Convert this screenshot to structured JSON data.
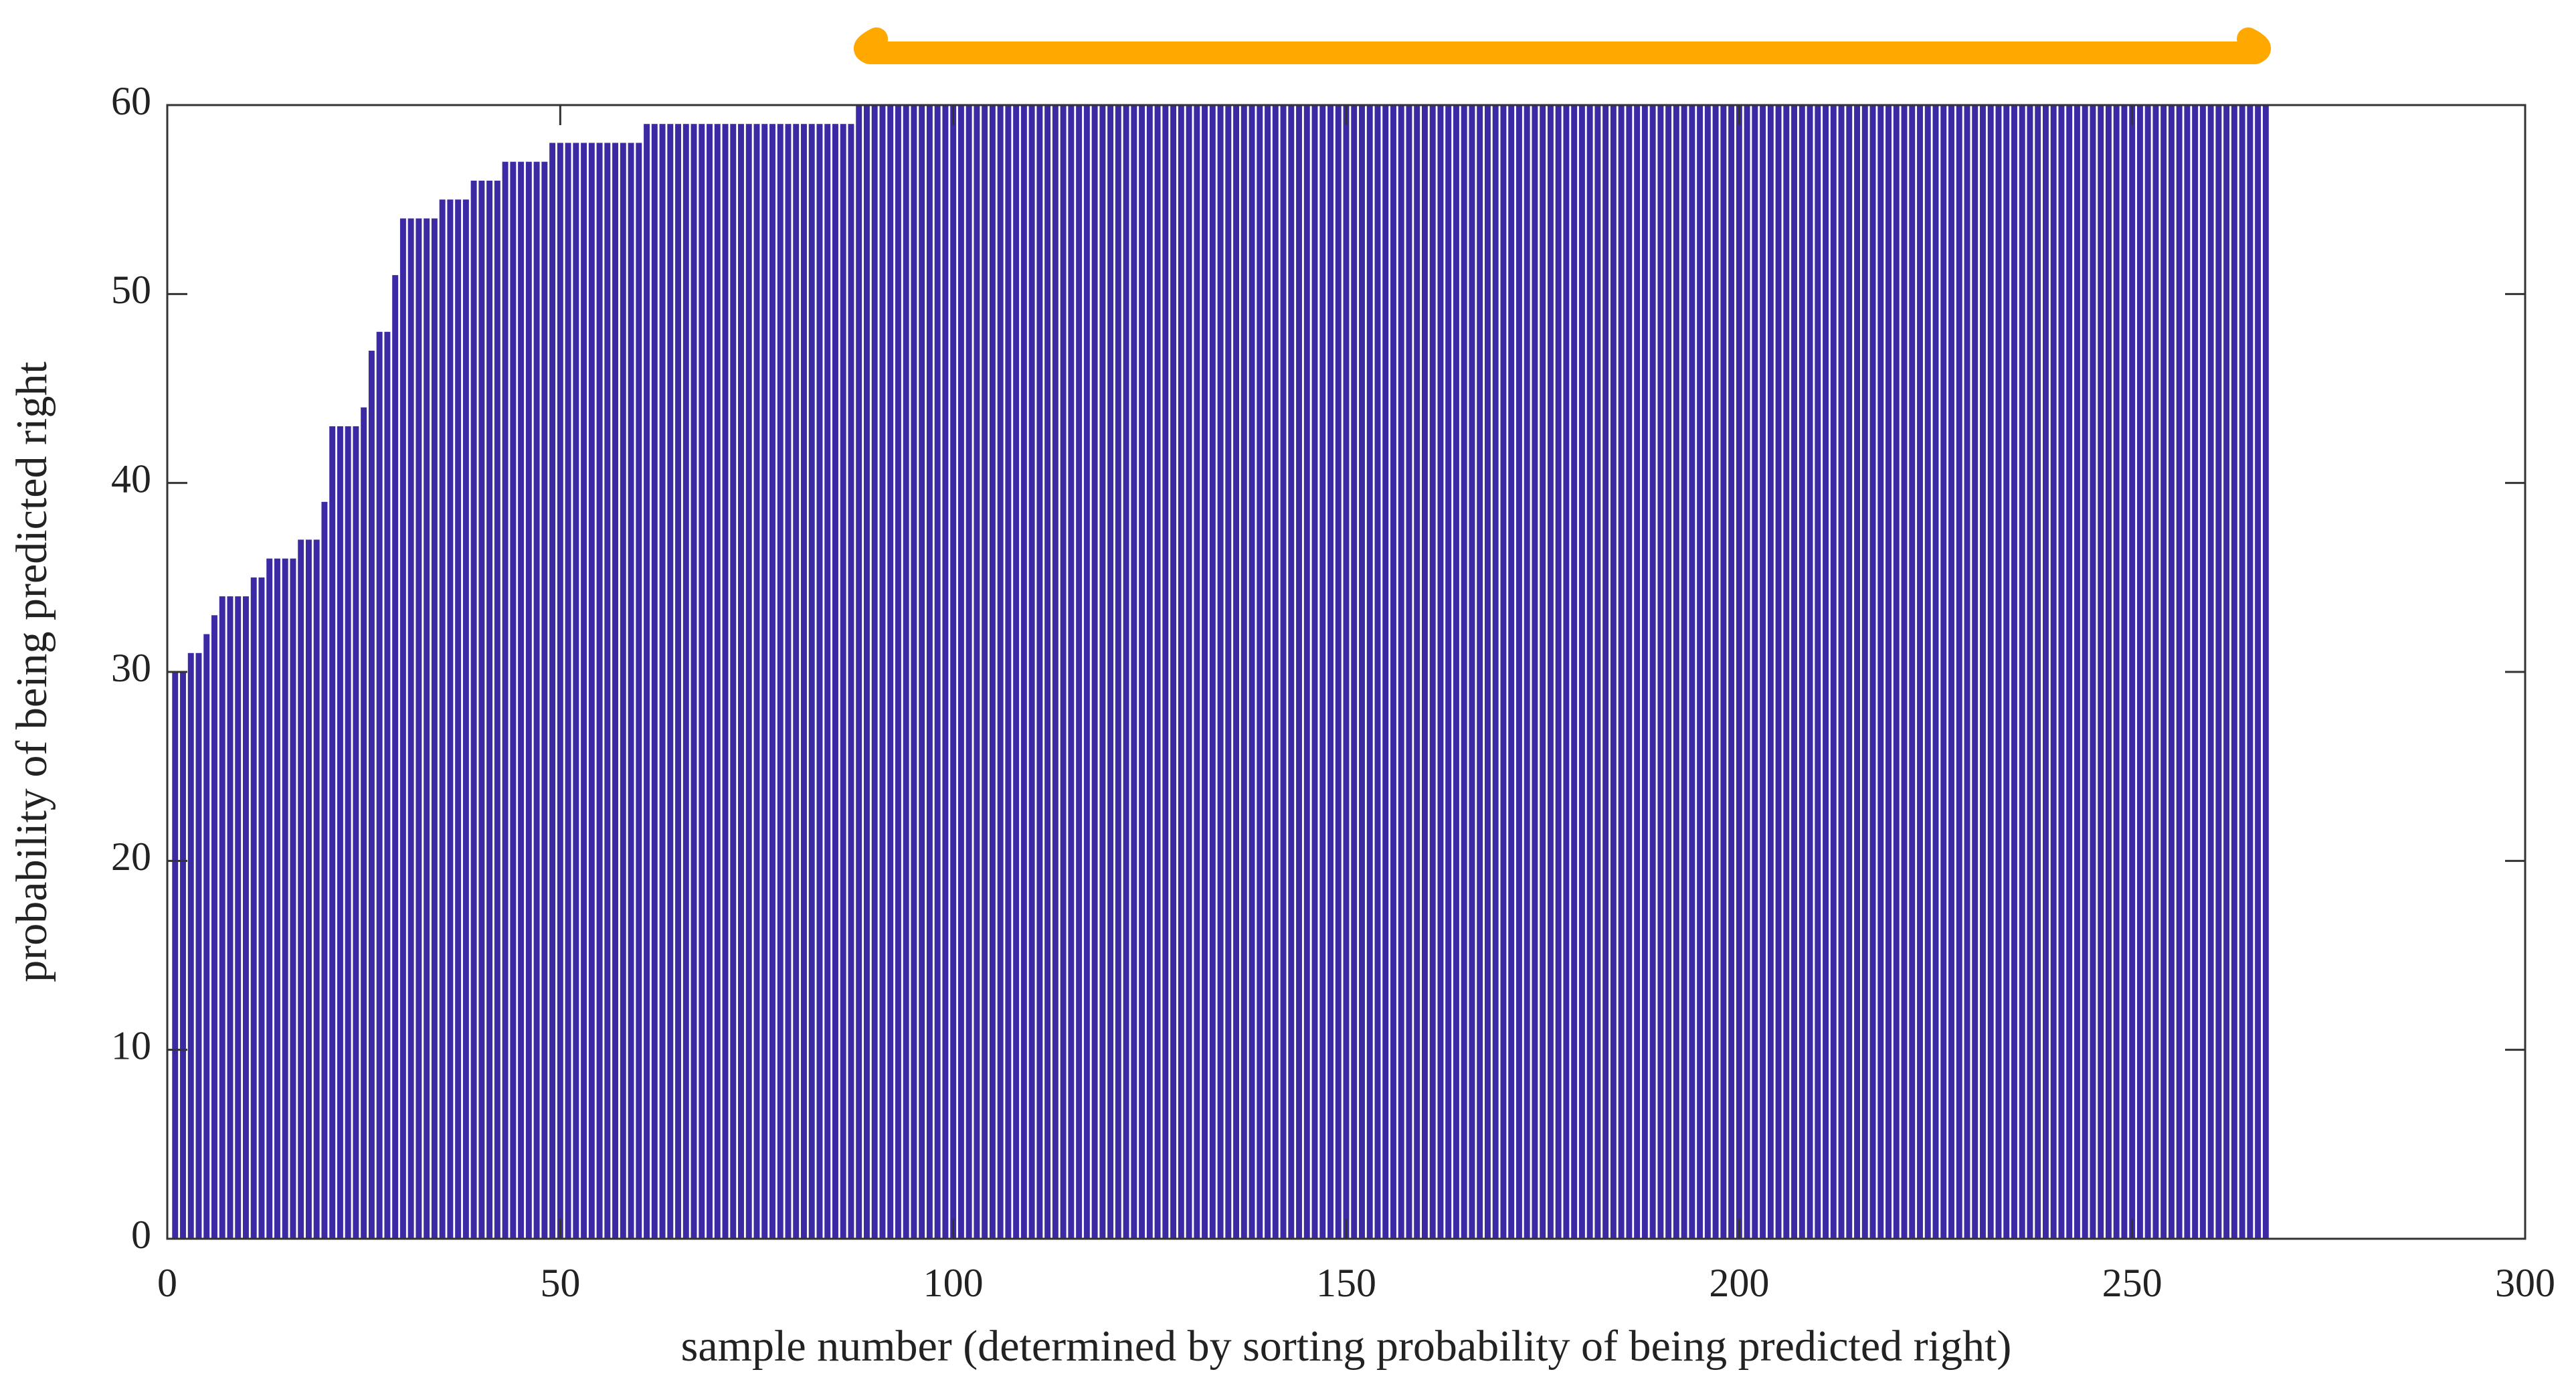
{
  "chart_data": {
    "type": "bar",
    "x_label": "sample number (determined by sorting probability of being predicted right)",
    "y_label": "probability of being predicted right",
    "color": "#3b2aa3",
    "xlim": [
      0,
      300
    ],
    "xticks": [
      0,
      50,
      100,
      150,
      200,
      250,
      300
    ],
    "ylim": [
      0,
      60
    ],
    "yticks": [
      0,
      10,
      20,
      30,
      40,
      50,
      60
    ],
    "x": [
      1,
      2,
      3,
      4,
      5,
      6,
      7,
      8,
      9,
      10,
      11,
      12,
      13,
      14,
      15,
      16,
      17,
      18,
      19,
      20,
      21,
      22,
      23,
      24,
      25,
      26,
      27,
      28,
      29,
      30,
      31,
      32,
      33,
      34,
      35,
      36,
      37,
      38,
      39,
      40,
      41,
      42,
      43,
      44,
      45,
      46,
      47,
      48,
      49,
      50,
      51,
      52,
      53,
      54,
      55,
      56,
      57,
      58,
      59,
      60,
      61,
      62,
      63,
      64,
      65,
      66,
      67,
      68,
      69,
      70,
      71,
      72,
      73,
      74,
      75,
      76,
      77,
      78,
      79,
      80,
      81,
      82,
      83,
      84,
      85,
      86,
      87,
      88,
      89,
      90,
      91,
      92,
      93,
      94,
      95,
      96,
      97,
      98,
      99,
      100,
      101,
      102,
      103,
      104,
      105,
      106,
      107,
      108,
      109,
      110,
      111,
      112,
      113,
      114,
      115,
      116,
      117,
      118,
      119,
      120,
      121,
      122,
      123,
      124,
      125,
      126,
      127,
      128,
      129,
      130,
      131,
      132,
      133,
      134,
      135,
      136,
      137,
      138,
      139,
      140,
      141,
      142,
      143,
      144,
      145,
      146,
      147,
      148,
      149,
      150,
      151,
      152,
      153,
      154,
      155,
      156,
      157,
      158,
      159,
      160,
      161,
      162,
      163,
      164,
      165,
      166,
      167,
      168,
      169,
      170,
      171,
      172,
      173,
      174,
      175,
      176,
      177,
      178,
      179,
      180,
      181,
      182,
      183,
      184,
      185,
      186,
      187,
      188,
      189,
      190,
      191,
      192,
      193,
      194,
      195,
      196,
      197,
      198,
      199,
      200,
      201,
      202,
      203,
      204,
      205,
      206,
      207,
      208,
      209,
      210,
      211,
      212,
      213,
      214,
      215,
      216,
      217,
      218,
      219,
      220,
      221,
      222,
      223,
      224,
      225,
      226,
      227,
      228,
      229,
      230,
      231,
      232,
      233,
      234,
      235,
      236,
      237,
      238,
      239,
      240,
      241,
      242,
      243,
      244,
      245,
      246,
      247,
      248,
      249,
      250,
      251,
      252,
      253,
      254,
      255,
      256,
      257,
      258,
      259,
      260,
      261,
      262,
      263,
      264,
      265,
      266,
      267
    ],
    "values": [
      30,
      30,
      31,
      31,
      32,
      33,
      34,
      34,
      34,
      34,
      35,
      35,
      36,
      36,
      36,
      36,
      37,
      37,
      37,
      39,
      43,
      43,
      43,
      43,
      44,
      47,
      48,
      48,
      51,
      54,
      54,
      54,
      54,
      54,
      55,
      55,
      55,
      55,
      56,
      56,
      56,
      56,
      57,
      57,
      57,
      57,
      57,
      57,
      58,
      58,
      58,
      58,
      58,
      58,
      58,
      58,
      58,
      58,
      58,
      58,
      59,
      59,
      59,
      59,
      59,
      59,
      59,
      59,
      59,
      59,
      59,
      59,
      59,
      59,
      59,
      59,
      59,
      59,
      59,
      59,
      59,
      59,
      59,
      59,
      59,
      59,
      59,
      60,
      60,
      60,
      60,
      60,
      60,
      60,
      60,
      60,
      60,
      60,
      60,
      60,
      60,
      60,
      60,
      60,
      60,
      60,
      60,
      60,
      60,
      60,
      60,
      60,
      60,
      60,
      60,
      60,
      60,
      60,
      60,
      60,
      60,
      60,
      60,
      60,
      60,
      60,
      60,
      60,
      60,
      60,
      60,
      60,
      60,
      60,
      60,
      60,
      60,
      60,
      60,
      60,
      60,
      60,
      60,
      60,
      60,
      60,
      60,
      60,
      60,
      60,
      60,
      60,
      60,
      60,
      60,
      60,
      60,
      60,
      60,
      60,
      60,
      60,
      60,
      60,
      60,
      60,
      60,
      60,
      60,
      60,
      60,
      60,
      60,
      60,
      60,
      60,
      60,
      60,
      60,
      60,
      60,
      60,
      60,
      60,
      60,
      60,
      60,
      60,
      60,
      60,
      60,
      60,
      60,
      60,
      60,
      60,
      60,
      60,
      60,
      60,
      60,
      60,
      60,
      60,
      60,
      60,
      60,
      60,
      60,
      60,
      60,
      60,
      60,
      60,
      60,
      60,
      60,
      60,
      60,
      60,
      60,
      60,
      60,
      60,
      60,
      60,
      60,
      60,
      60,
      60,
      60,
      60,
      60,
      60,
      60,
      60,
      60,
      60,
      60,
      60,
      60,
      60,
      60,
      60,
      60,
      60,
      60,
      60,
      60,
      60,
      60,
      60,
      60,
      60,
      60,
      60,
      60,
      60,
      60,
      60,
      60,
      60,
      60,
      60,
      60,
      60,
      60
    ]
  }
}
